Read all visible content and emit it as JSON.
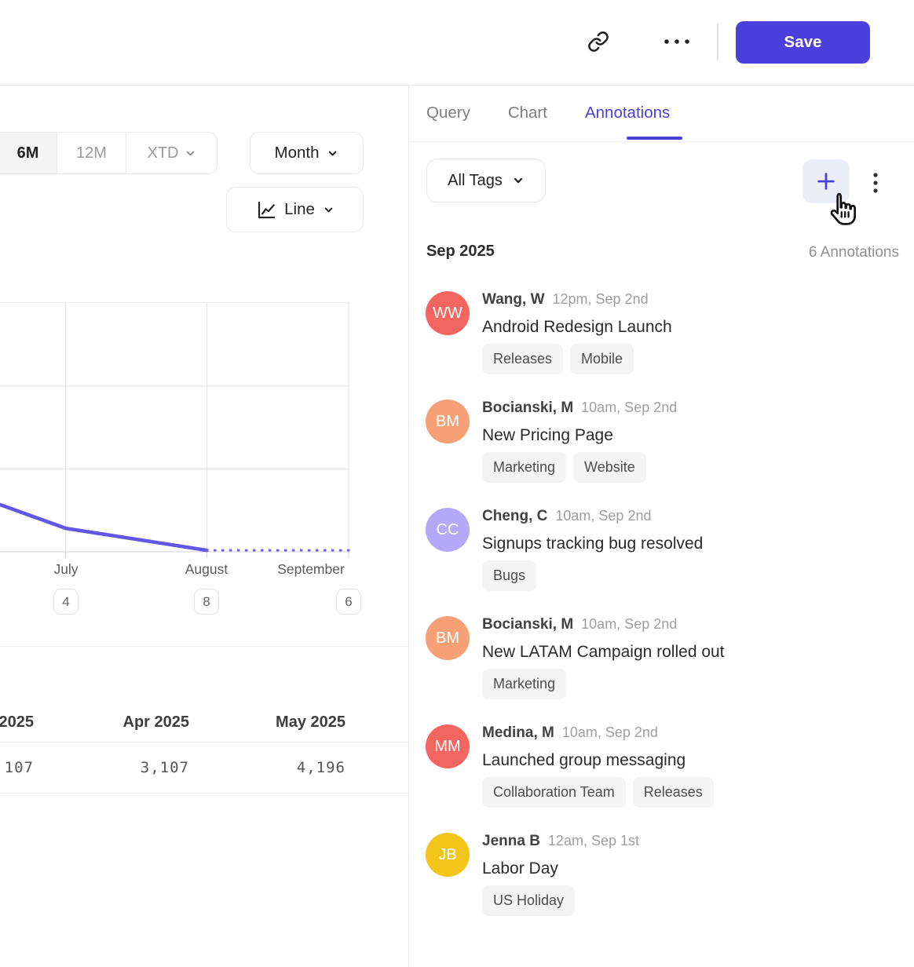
{
  "accent_color": "#4b40db",
  "toolbar": {
    "icons": [
      "link-icon",
      "more-horizontal-icon"
    ],
    "save_label": "Save"
  },
  "tabs": {
    "items": [
      {
        "label": "Query",
        "active": false
      },
      {
        "label": "Chart",
        "active": false
      },
      {
        "label": "Annotations",
        "active": true
      }
    ]
  },
  "controls": {
    "range_selector": {
      "options": [
        {
          "label": "6M",
          "selected": true
        },
        {
          "label": "12M",
          "selected": false
        },
        {
          "label": "XTD",
          "selected": false,
          "has_dropdown": true
        }
      ]
    },
    "granularity_label": "Month",
    "chart_type_label": "Line",
    "chart_type_icon": "line-chart-icon"
  },
  "chart_data": {
    "type": "line",
    "x_labels": [
      "July",
      "August",
      "September"
    ],
    "x_label_xf": [
      0.188,
      0.592,
      0.89
    ],
    "annotation_counts": [
      {
        "count": "4",
        "xf": 0.188
      },
      {
        "count": "8",
        "xf": 0.592
      },
      {
        "count": "6",
        "xf": 0.998
      }
    ],
    "series": [
      {
        "name": "observed",
        "style": "solid",
        "points_xf_yf": [
          [
            0,
            0.811
          ],
          [
            0.188,
            0.906
          ],
          [
            0.592,
            0.994
          ]
        ]
      },
      {
        "name": "projected",
        "style": "dotted",
        "points_xf_yf": [
          [
            0.592,
            0.994
          ],
          [
            1.0,
            0.994
          ]
        ]
      }
    ],
    "grid": {
      "vertical_xf": [
        0.188,
        0.592,
        0.998
      ],
      "horizontal_yf": [
        0,
        0.336,
        0.669,
        1
      ]
    },
    "line_color": "#6356e5",
    "legend": "none",
    "y_axis": "not visible (clipped)"
  },
  "table": {
    "columns": [
      "2025",
      "Apr 2025",
      "May 2025"
    ],
    "values": [
      "107",
      "3,107",
      "4,196"
    ]
  },
  "panel": {
    "filter_label": "All Tags",
    "add_icon": "plus-icon",
    "menu_icon": "kebab-menu-icon",
    "month_header": "Sep 2025",
    "count_label": "6 Annotations",
    "annotations": [
      {
        "initials": "WW",
        "color": "#f4655f",
        "author": "Wang, W",
        "time": "12pm, Sep 2nd",
        "title": "Android Redesign Launch",
        "tags": [
          "Releases",
          "Mobile"
        ]
      },
      {
        "initials": "BM",
        "color": "#f7a076",
        "author": "Bocianski, M",
        "time": "10am, Sep 2nd",
        "title": "New Pricing Page",
        "tags": [
          "Marketing",
          "Website"
        ]
      },
      {
        "initials": "CC",
        "color": "#b4a9f8",
        "author": "Cheng, C",
        "time": "10am, Sep 2nd",
        "title": "Signups tracking bug resolved",
        "tags": [
          "Bugs"
        ]
      },
      {
        "initials": "BM",
        "color": "#f7a076",
        "author": "Bocianski, M",
        "time": "10am, Sep 2nd",
        "title": "New LATAM Campaign rolled out",
        "tags": [
          "Marketing"
        ]
      },
      {
        "initials": "MM",
        "color": "#f4655f",
        "author": "Medina, M",
        "time": "10am, Sep 2nd",
        "title": "Launched group messaging",
        "tags": [
          "Collaboration Team",
          "Releases"
        ]
      },
      {
        "initials": "JB",
        "color": "#f3c51b",
        "author": "Jenna B",
        "time": "12am, Sep 1st",
        "title": "Labor Day",
        "tags": [
          "US Holiday"
        ]
      }
    ]
  }
}
